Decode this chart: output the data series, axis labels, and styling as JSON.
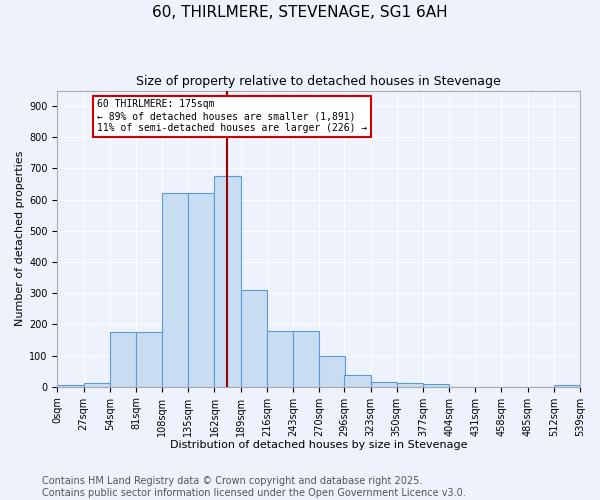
{
  "title": "60, THIRLMERE, STEVENAGE, SG1 6AH",
  "subtitle": "Size of property relative to detached houses in Stevenage",
  "xlabel": "Distribution of detached houses by size in Stevenage",
  "ylabel": "Number of detached properties",
  "bar_color": "#c8ddf2",
  "bar_edge_color": "#5b9bd5",
  "background_color": "#eef2fc",
  "grid_color": "#ffffff",
  "annotation_line_color": "#990000",
  "annotation_box_edgecolor": "#cc0000",
  "annotation_text_line1": "60 THIRLMERE: 175sqm",
  "annotation_text_line2": "← 89% of detached houses are smaller (1,891)",
  "annotation_text_line3": "11% of semi-detached houses are larger (226) →",
  "property_size": 175,
  "bin_edges": [
    0,
    27,
    54,
    81,
    108,
    135,
    162,
    189,
    216,
    243,
    270,
    296,
    323,
    350,
    377,
    404,
    431,
    458,
    485,
    512,
    539
  ],
  "bin_labels": [
    "0sqm",
    "27sqm",
    "54sqm",
    "81sqm",
    "108sqm",
    "135sqm",
    "162sqm",
    "189sqm",
    "216sqm",
    "243sqm",
    "270sqm",
    "296sqm",
    "323sqm",
    "350sqm",
    "377sqm",
    "404sqm",
    "431sqm",
    "458sqm",
    "485sqm",
    "512sqm",
    "539sqm"
  ],
  "counts": [
    7,
    13,
    175,
    175,
    620,
    620,
    675,
    310,
    180,
    180,
    100,
    38,
    15,
    12,
    10,
    0,
    0,
    0,
    0,
    5
  ],
  "ylim": [
    0,
    950
  ],
  "yticks": [
    0,
    100,
    200,
    300,
    400,
    500,
    600,
    700,
    800,
    900
  ],
  "footnote": "Contains HM Land Registry data © Crown copyright and database right 2025.\nContains public sector information licensed under the Open Government Licence v3.0.",
  "footnote_fontsize": 7,
  "title_fontsize": 11,
  "subtitle_fontsize": 9,
  "ylabel_fontsize": 8,
  "xlabel_fontsize": 8,
  "tick_fontsize": 7
}
